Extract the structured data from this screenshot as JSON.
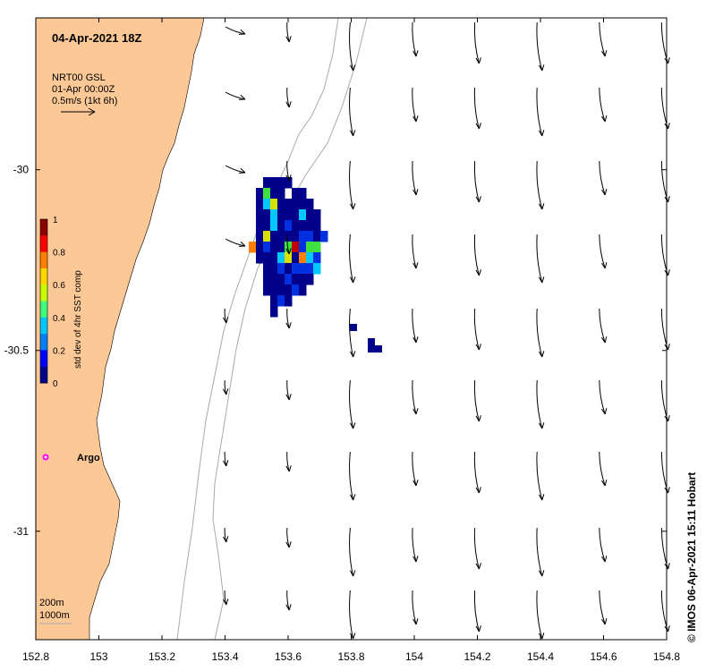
{
  "title": "04-Apr-2021 18Z",
  "current_legend": {
    "product": "NRT00 GSL",
    "time": "01-Apr 00:00Z",
    "scale": "0.5m/s (1kt 6h)"
  },
  "colorbar": {
    "label": "std dev of 4hr SST comp",
    "ticks": [
      "0",
      "0.2",
      "0.4",
      "0.6",
      "0.8",
      "1"
    ],
    "colors": [
      "#00008b",
      "#0000ff",
      "#0080ff",
      "#00c8ff",
      "#40ff80",
      "#c8ff00",
      "#ffd700",
      "#ff8000",
      "#ff0000",
      "#8b0000"
    ]
  },
  "x_axis": {
    "ticks": [
      "152.8",
      "153",
      "153.2",
      "153.4",
      "153.6",
      "153.8",
      "154",
      "154.2",
      "154.4",
      "154.6",
      "154.8"
    ],
    "range": [
      152.8,
      154.8
    ]
  },
  "y_axis": {
    "ticks": [
      "-30",
      "-30.5",
      "-31"
    ],
    "values": [
      -30,
      -30.5,
      -31
    ],
    "range": [
      -31.3,
      -29.58
    ]
  },
  "argo": {
    "label": "Argo",
    "lon": 152.83,
    "lat": -30.8,
    "color": "#ff00ff"
  },
  "depth_legend": {
    "line1": "200m",
    "line2": "1000m"
  },
  "credit": "© IMOS 06-Apr-2021 15:11 Hobart",
  "land_color": "#fcc896"
}
